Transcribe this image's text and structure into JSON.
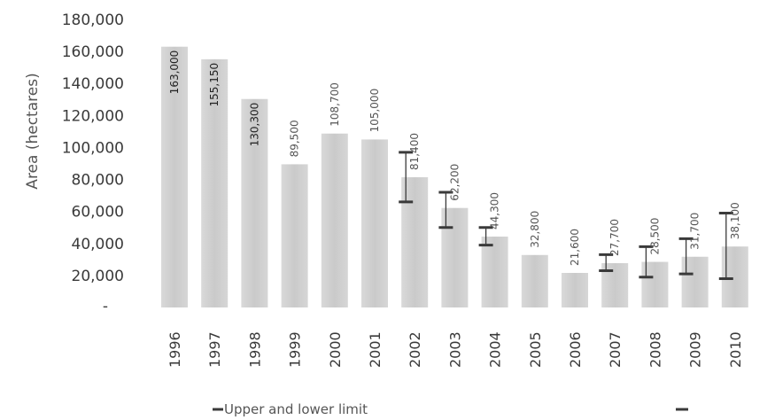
{
  "chart_data": {
    "type": "bar",
    "ylabel": "Area (hectares)",
    "ylim": [
      0,
      180000
    ],
    "yticks": [
      "180,000",
      "160,000",
      "140,000",
      "120,000",
      "100,000",
      "80,000",
      "60,000",
      "40,000",
      "20,000",
      "-"
    ],
    "categories": [
      "1996",
      "1997",
      "1998",
      "1999",
      "2000",
      "2001",
      "2002",
      "2003",
      "2004",
      "2005",
      "2006",
      "2007",
      "2008",
      "2009",
      "2010"
    ],
    "values": [
      163000,
      155150,
      130300,
      89500,
      108700,
      105000,
      81400,
      62200,
      44300,
      32800,
      21600,
      27700,
      28500,
      31700,
      38100
    ],
    "value_labels": [
      "163,000",
      "155,150",
      "130,300",
      "89,500",
      "108,700",
      "105,000",
      "81,400",
      "62,200",
      "44,300",
      "32,800",
      "21,600",
      "27,700",
      "28,500",
      "31,700",
      "38,100"
    ],
    "error_bars": [
      {
        "category": "2002",
        "upper": 97000,
        "lower": 66000
      },
      {
        "category": "2003",
        "upper": 72000,
        "lower": 50000
      },
      {
        "category": "2004",
        "upper": 50000,
        "lower": 39000
      },
      {
        "category": "2007",
        "upper": 33000,
        "lower": 23000
      },
      {
        "category": "2008",
        "upper": 38000,
        "lower": 19000
      },
      {
        "category": "2009",
        "upper": 43000,
        "lower": 21000
      },
      {
        "category": "2010",
        "upper": 59000,
        "lower": 18000
      }
    ],
    "legend": [
      "Upper and lower limit"
    ],
    "colors": {
      "bar": "#cfcfcf",
      "error_bar": "#3a3a3a"
    }
  }
}
